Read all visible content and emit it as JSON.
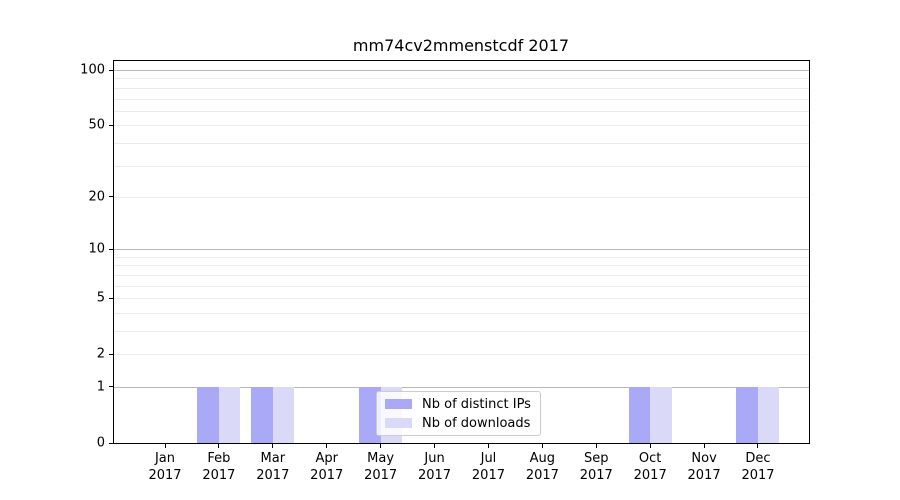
{
  "chart_data": {
    "type": "bar",
    "title": "mm74cv2mmenstcdf 2017",
    "categories": [
      "Jan",
      "Feb",
      "Mar",
      "Apr",
      "May",
      "Jun",
      "Jul",
      "Aug",
      "Sep",
      "Oct",
      "Nov",
      "Dec"
    ],
    "year_label": "2017",
    "series": [
      {
        "name": "Nb of distinct IPs",
        "color": "#a9a9f7",
        "values": [
          0,
          1,
          1,
          0,
          1,
          0,
          0,
          0,
          0,
          1,
          0,
          1
        ]
      },
      {
        "name": "Nb of downloads",
        "color": "#dadaf8",
        "values": [
          0,
          1,
          1,
          0,
          1,
          0,
          0,
          0,
          0,
          1,
          0,
          1
        ]
      }
    ],
    "yscale": "log1p",
    "ylim": [
      0,
      113.4
    ],
    "ytick_labels": [
      100,
      50,
      20,
      10,
      5,
      2,
      1,
      0
    ],
    "major_gridline_values": [
      100,
      10,
      1
    ],
    "minor_gridline_values": [
      90,
      80,
      70,
      60,
      50,
      40,
      30,
      20,
      9,
      8,
      7,
      6,
      5,
      4,
      3,
      2
    ],
    "grid": "horizontal",
    "legend_position": "lower center-left inside plot"
  }
}
